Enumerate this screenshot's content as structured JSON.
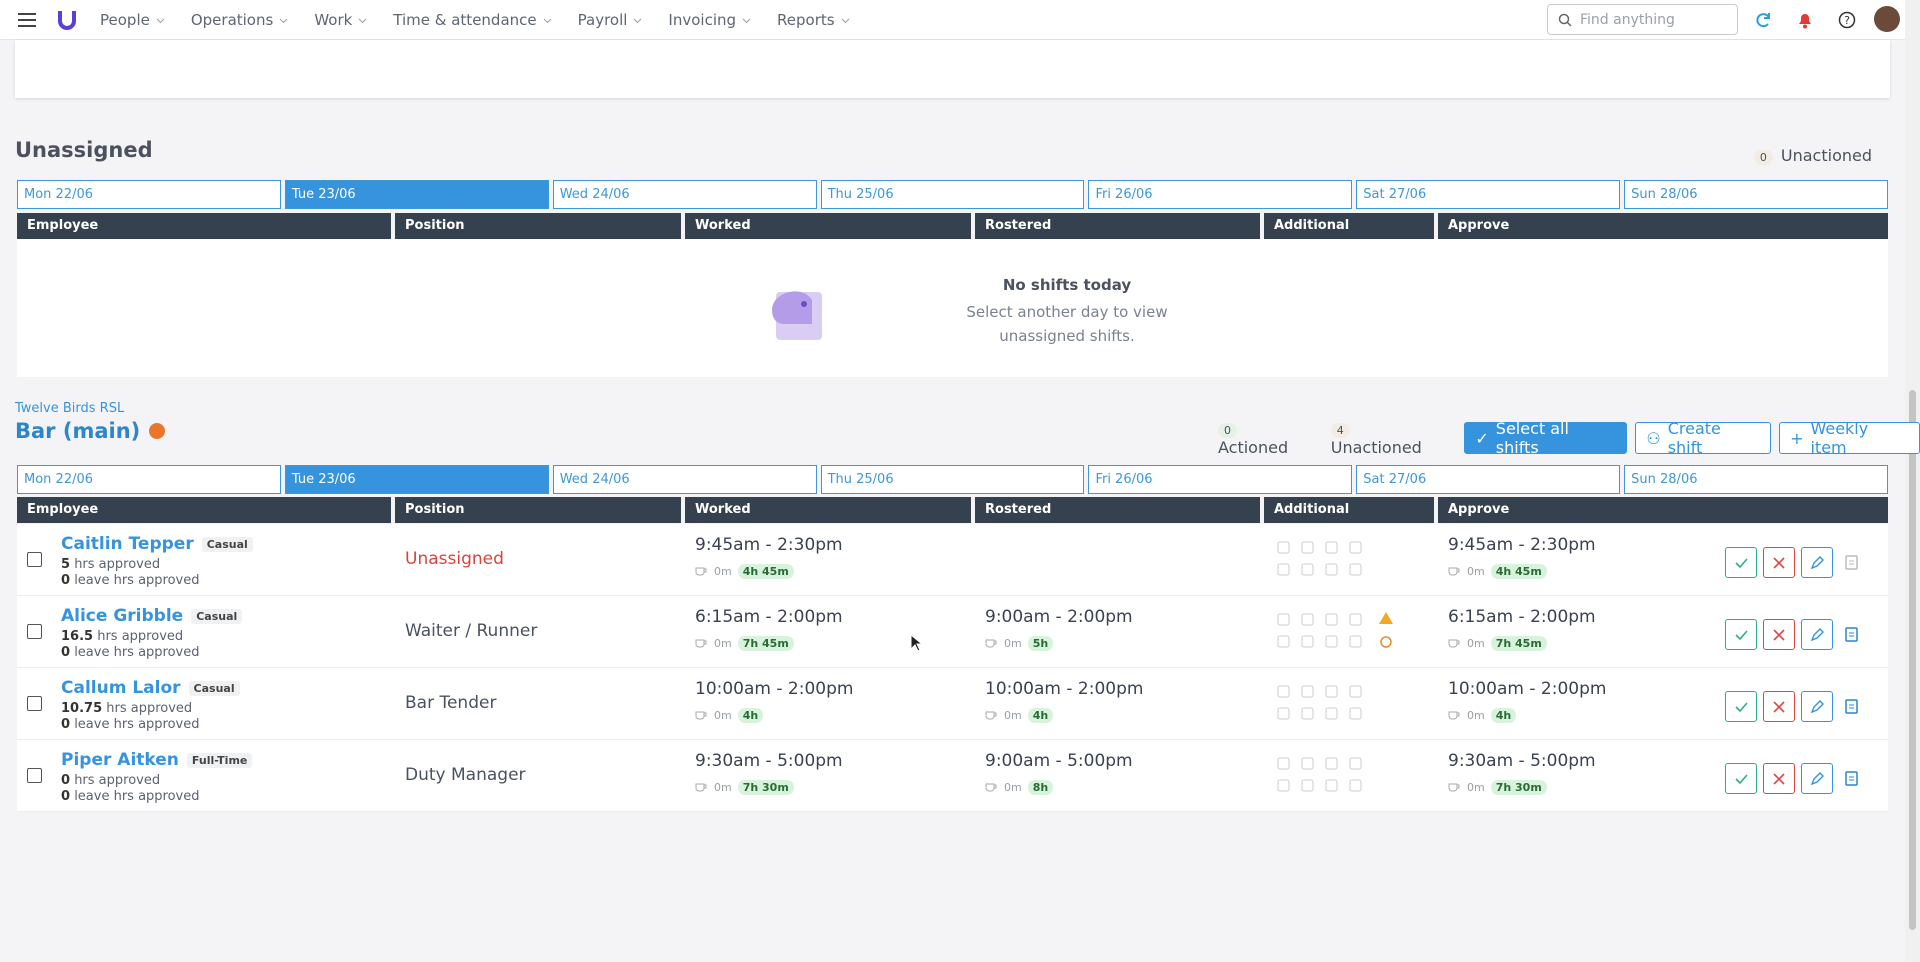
{
  "nav": {
    "items": [
      "People",
      "Operations",
      "Work",
      "Time & attendance",
      "Payroll",
      "Invoicing",
      "Reports"
    ],
    "search": "Find anything"
  },
  "unassigned": {
    "title": "Unassigned",
    "unactioned_count": 0,
    "unactioned": "Unactioned",
    "days": [
      "Mon 22/06",
      "Tue 23/06",
      "Wed 24/06",
      "Thu 25/06",
      "Fri 26/06",
      "Sat 27/06",
      "Sun 28/06"
    ],
    "selected_day": 1,
    "columns": [
      "Employee",
      "Position",
      "Worked",
      "Rostered",
      "Additional",
      "Approve"
    ],
    "empty_title": "No shifts today",
    "empty_text": "Select another day to view unassigned shifts."
  },
  "bar": {
    "location": "Twelve Birds RSL",
    "title": "Bar (main)",
    "actioned_count": 0,
    "actioned": "Actioned",
    "unactioned_count": 4,
    "unactioned": "Unactioned",
    "buttons": [
      "Select all shifts",
      "Create shift",
      "Weekly item"
    ],
    "days": [
      "Mon 22/06",
      "Tue 23/06",
      "Wed 24/06",
      "Thu 25/06",
      "Fri 26/06",
      "Sat 27/06",
      "Sun 28/06"
    ],
    "selected_day": 1,
    "columns": [
      "Employee",
      "Position",
      "Worked",
      "Rostered",
      "Additional",
      "Approve"
    ],
    "rows": [
      {
        "name": "Caitlin Tepper",
        "type": "Casual",
        "hrs": 5,
        "hrs_label": "hrs approved",
        "leave": 0,
        "leave_label": "leave hrs approved",
        "position": "Unassigned",
        "unassigned": true,
        "warning": false,
        "worked": {
          "time": "9:45am - 2:30pm",
          "break": "0m",
          "total": "4h 45m"
        },
        "rostered": null,
        "approve": {
          "time": "9:45am - 2:30pm",
          "break": "0m",
          "total": "4h 45m"
        }
      },
      {
        "name": "Alice Gribble",
        "type": "Casual",
        "hrs": 16.5,
        "hrs_label": "hrs approved",
        "leave": 0,
        "leave_label": "leave hrs approved",
        "position": "Waiter / Runner",
        "unassigned": false,
        "warning": true,
        "worked": {
          "time": "6:15am - 2:00pm",
          "break": "0m",
          "total": "7h 45m"
        },
        "rostered": {
          "time": "9:00am - 2:00pm",
          "break": "0m",
          "total": "5h"
        },
        "approve": {
          "time": "6:15am - 2:00pm",
          "break": "0m",
          "total": "7h 45m"
        }
      },
      {
        "name": "Callum Lalor",
        "type": "Casual",
        "hrs": 10.75,
        "hrs_label": "hrs approved",
        "leave": 0,
        "leave_label": "leave hrs approved",
        "position": "Bar Tender",
        "unassigned": false,
        "warning": false,
        "worked": {
          "time": "10:00am - 2:00pm",
          "break": "0m",
          "total": "4h"
        },
        "rostered": {
          "time": "10:00am - 2:00pm",
          "break": "0m",
          "total": "4h"
        },
        "approve": {
          "time": "10:00am - 2:00pm",
          "break": "0m",
          "total": "4h"
        }
      },
      {
        "name": "Piper Aitken",
        "type": "Full-Time",
        "hrs": 0,
        "hrs_label": "hrs approved",
        "leave": 0,
        "leave_label": "leave hrs approved",
        "position": "Duty Manager",
        "unassigned": false,
        "warning": false,
        "worked": {
          "time": "9:30am - 5:00pm",
          "break": "0m",
          "total": "7h 30m"
        },
        "rostered": {
          "time": "9:00am - 5:00pm",
          "break": "0m",
          "total": "8h"
        },
        "approve": {
          "time": "9:30am - 5:00pm",
          "break": "0m",
          "total": "7h 30m"
        }
      }
    ]
  }
}
